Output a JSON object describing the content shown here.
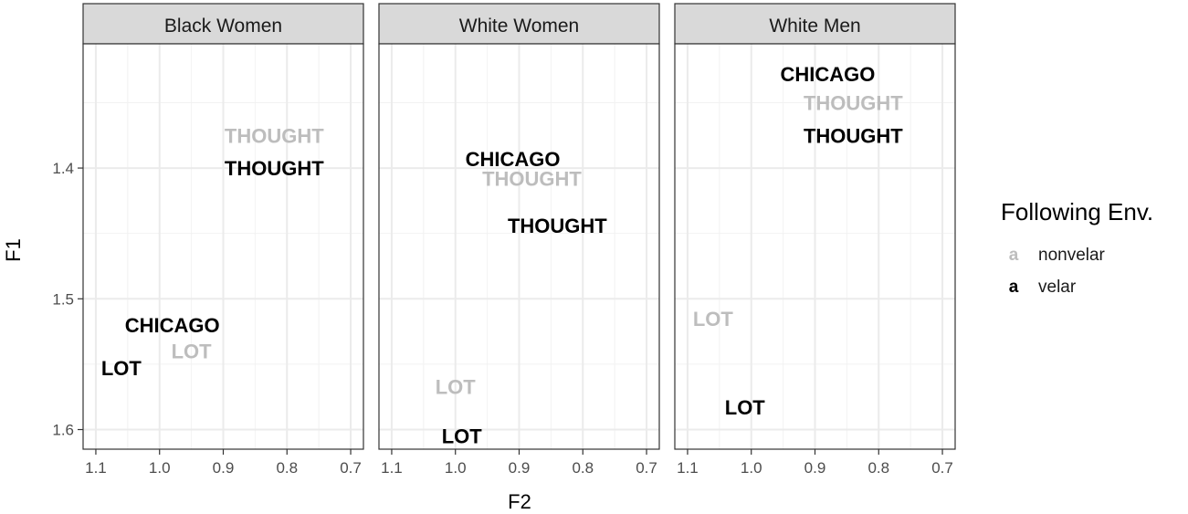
{
  "chart_data": {
    "type": "scatter",
    "xlabel": "F2",
    "ylabel": "F1",
    "x_reversed": true,
    "y_reversed": true,
    "xlim": [
      1.12,
      0.68
    ],
    "ylim": [
      1.305,
      1.615
    ],
    "x_ticks": [
      1.1,
      1.0,
      0.9,
      0.8,
      0.7
    ],
    "x_tick_labels": [
      "1.1",
      "1.0",
      "0.9",
      "0.8",
      "0.7"
    ],
    "y_ticks": [
      1.4,
      1.5,
      1.6
    ],
    "y_tick_labels": [
      "1.4",
      "1.5",
      "1.6"
    ],
    "grid": true,
    "legend": {
      "title": "Following Env.",
      "position": "right",
      "key_glyph": "a",
      "entries": [
        {
          "key": "a",
          "label": "nonvelar",
          "color": "#bdbdbd"
        },
        {
          "key": "a",
          "label": "velar",
          "color": "#000000"
        }
      ]
    },
    "colors": {
      "nonvelar": "#bdbdbd",
      "velar": "#000000"
    },
    "panels": [
      {
        "title": "Black Women",
        "points": [
          {
            "label": "THOUGHT",
            "env": "nonvelar",
            "x": 0.82,
            "y": 1.375
          },
          {
            "label": "THOUGHT",
            "env": "velar",
            "x": 0.82,
            "y": 1.4
          },
          {
            "label": "CHICAGO",
            "env": "velar",
            "x": 0.98,
            "y": 1.52
          },
          {
            "label": "LOT",
            "env": "nonvelar",
            "x": 0.95,
            "y": 1.54
          },
          {
            "label": "LOT",
            "env": "velar",
            "x": 1.06,
            "y": 1.553
          }
        ]
      },
      {
        "title": "White Women",
        "points": [
          {
            "label": "CHICAGO",
            "env": "velar",
            "x": 0.91,
            "y": 1.393
          },
          {
            "label": "THOUGHT",
            "env": "nonvelar",
            "x": 0.88,
            "y": 1.408
          },
          {
            "label": "THOUGHT",
            "env": "velar",
            "x": 0.84,
            "y": 1.444
          },
          {
            "label": "LOT",
            "env": "nonvelar",
            "x": 1.0,
            "y": 1.567
          },
          {
            "label": "LOT",
            "env": "velar",
            "x": 0.99,
            "y": 1.605
          }
        ]
      },
      {
        "title": "White Men",
        "points": [
          {
            "label": "CHICAGO",
            "env": "velar",
            "x": 0.88,
            "y": 1.328
          },
          {
            "label": "THOUGHT",
            "env": "nonvelar",
            "x": 0.84,
            "y": 1.35
          },
          {
            "label": "THOUGHT",
            "env": "velar",
            "x": 0.84,
            "y": 1.375
          },
          {
            "label": "LOT",
            "env": "nonvelar",
            "x": 1.06,
            "y": 1.515
          },
          {
            "label": "LOT",
            "env": "velar",
            "x": 1.01,
            "y": 1.583
          }
        ]
      }
    ]
  }
}
